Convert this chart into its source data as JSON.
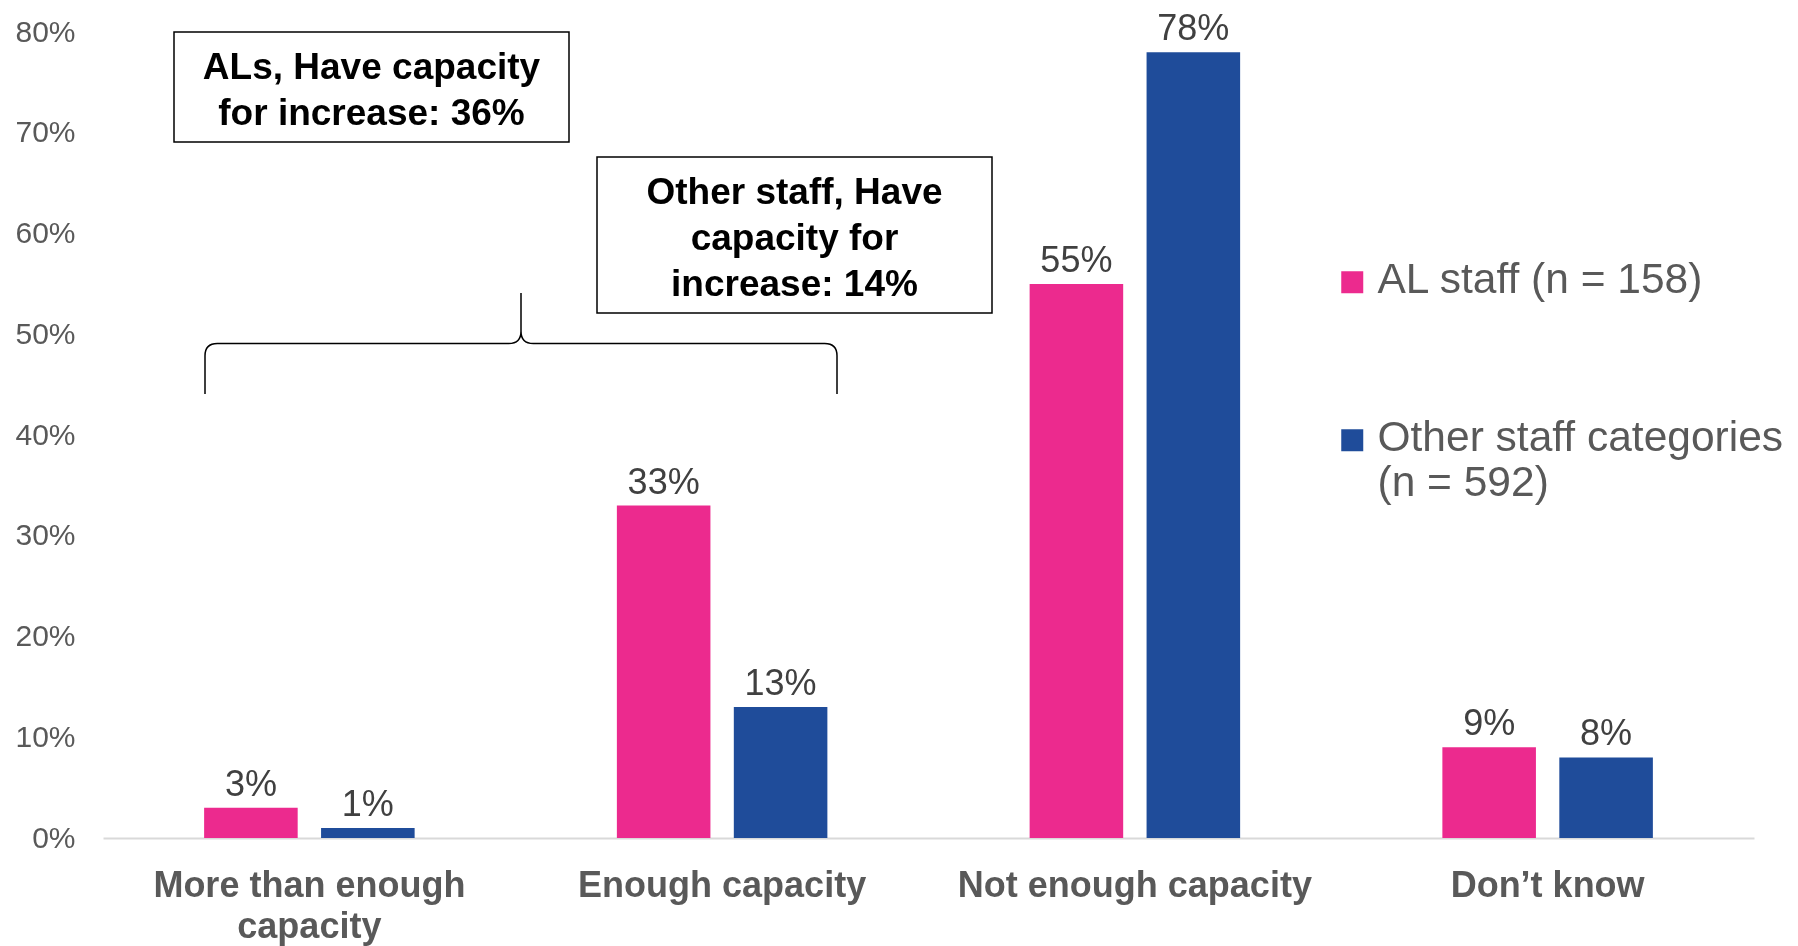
{
  "chart_data": {
    "type": "bar",
    "categories": [
      "More than enough capacity",
      "Enough capacity",
      "Not enough capacity",
      "Don’t know"
    ],
    "series": [
      {
        "name": "AL staff (n = 158)",
        "color": "#ec2a8e",
        "values": [
          3,
          33,
          55,
          9
        ],
        "value_labels": [
          "3%",
          "33%",
          "55%",
          "9%"
        ]
      },
      {
        "name": "Other staff categories (n = 592)",
        "color": "#1f4c9a",
        "values": [
          1,
          13,
          78,
          8
        ],
        "value_labels": [
          "1%",
          "13%",
          "78%",
          "8%"
        ]
      }
    ],
    "ylim": [
      0,
      80
    ],
    "yticks": [
      {
        "value": 0,
        "label": "0%"
      },
      {
        "value": 10,
        "label": "10%"
      },
      {
        "value": 20,
        "label": "20%"
      },
      {
        "value": 30,
        "label": "30%"
      },
      {
        "value": 40,
        "label": "40%"
      },
      {
        "value": 50,
        "label": "50%"
      },
      {
        "value": 60,
        "label": "60%"
      },
      {
        "value": 70,
        "label": "70%"
      },
      {
        "value": 80,
        "label": "80%"
      }
    ],
    "grid": false,
    "legend": "right",
    "annotations": [
      "ALs, Have capacity for increase: 36%",
      "Other staff, Have capacity for increase: 14%"
    ]
  }
}
